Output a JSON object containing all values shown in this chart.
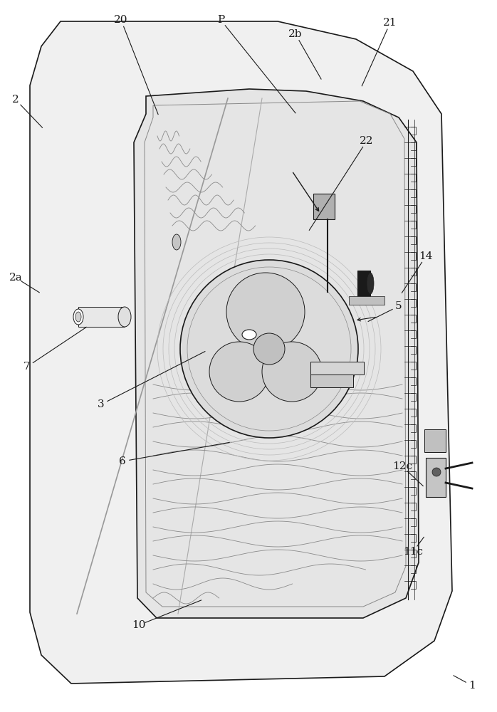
{
  "bg_color": "#ffffff",
  "line_color": "#1a1a1a",
  "gray_line": "#888888",
  "light_gray": "#cccccc",
  "panel_fill": "#f2f2f2",
  "inner_fill": "#e8e8e8",
  "dark_gray": "#555555",
  "fontsize": 11,
  "labels_info": [
    [
      "1",
      630,
      945,
      663,
      963
    ],
    [
      "2",
      65,
      185,
      22,
      140
    ],
    [
      "2a",
      62,
      415,
      22,
      390
    ],
    [
      "2b",
      455,
      118,
      415,
      48
    ],
    [
      "3",
      295,
      490,
      142,
      568
    ],
    [
      "5",
      510,
      455,
      560,
      430
    ],
    [
      "6",
      330,
      620,
      172,
      648
    ],
    [
      "7",
      128,
      455,
      38,
      515
    ],
    [
      "10",
      290,
      840,
      195,
      878
    ],
    [
      "11c",
      600,
      748,
      580,
      775
    ],
    [
      "12c",
      600,
      688,
      565,
      655
    ],
    [
      "14",
      560,
      418,
      598,
      360
    ],
    [
      "20",
      225,
      168,
      170,
      28
    ],
    [
      "21",
      505,
      128,
      548,
      32
    ],
    [
      "22",
      430,
      330,
      515,
      198
    ],
    [
      "P",
      420,
      165,
      310,
      28
    ]
  ]
}
